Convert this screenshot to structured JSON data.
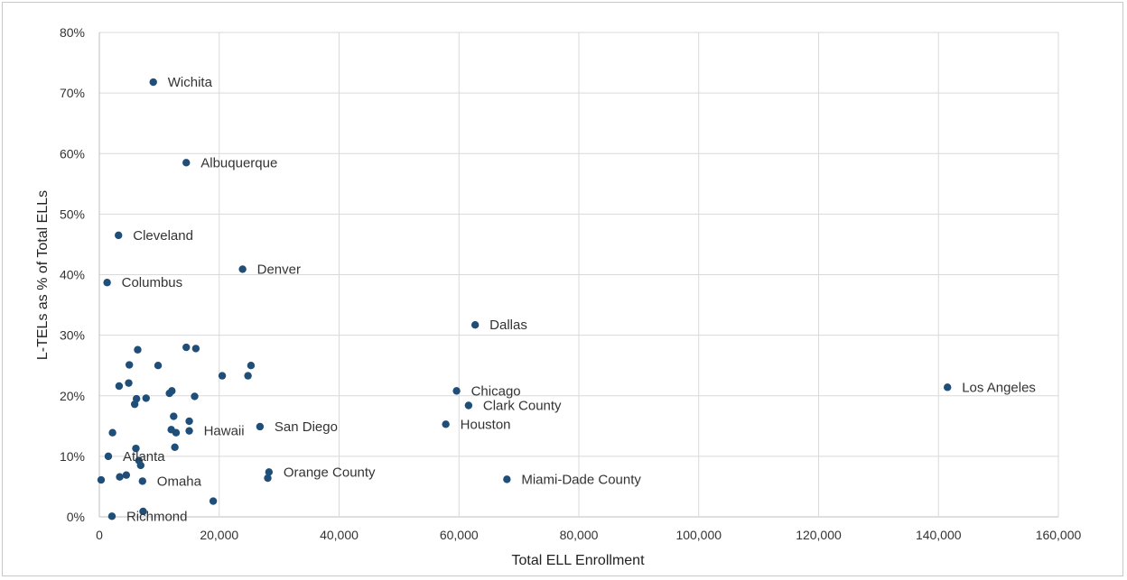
{
  "chart_data": {
    "type": "scatter",
    "title": "",
    "xlabel": "Total ELL Enrollment",
    "ylabel": "L-TELs as % of Total ELLs",
    "xlim": [
      0,
      160000
    ],
    "ylim": [
      0,
      80
    ],
    "x_ticks": [
      0,
      20000,
      40000,
      60000,
      80000,
      100000,
      120000,
      140000,
      160000
    ],
    "x_tick_labels": [
      "0",
      "20,000",
      "40,000",
      "60,000",
      "80,000",
      "100,000",
      "120,000",
      "140,000",
      "160,000"
    ],
    "y_ticks": [
      0,
      10,
      20,
      30,
      40,
      50,
      60,
      70,
      80
    ],
    "y_tick_labels": [
      "0%",
      "10%",
      "20%",
      "30%",
      "40%",
      "50%",
      "60%",
      "70%",
      "80%"
    ],
    "grid": true,
    "legend": "none",
    "marker_color": "#1f4e79",
    "points": [
      {
        "x": 9000,
        "y": 71.8,
        "label": "Wichita"
      },
      {
        "x": 14500,
        "y": 58.5,
        "label": "Albuquerque"
      },
      {
        "x": 3200,
        "y": 46.5,
        "label": "Cleveland"
      },
      {
        "x": 23900,
        "y": 40.9,
        "label": "Denver"
      },
      {
        "x": 1300,
        "y": 38.7,
        "label": "Columbus"
      },
      {
        "x": 62700,
        "y": 31.7,
        "label": "Dallas"
      },
      {
        "x": 141500,
        "y": 21.4,
        "label": "Los Angeles"
      },
      {
        "x": 59600,
        "y": 20.8,
        "label": "Chicago"
      },
      {
        "x": 61600,
        "y": 18.4,
        "label": "Clark County"
      },
      {
        "x": 57800,
        "y": 15.3,
        "label": "Houston"
      },
      {
        "x": 26800,
        "y": 14.9,
        "label": "San Diego"
      },
      {
        "x": 15000,
        "y": 14.2,
        "label": "Hawaii"
      },
      {
        "x": 1500,
        "y": 10.0,
        "label": "Atlanta"
      },
      {
        "x": 28300,
        "y": 7.4,
        "label": "Orange County"
      },
      {
        "x": 68000,
        "y": 6.2,
        "label": "Miami-Dade County"
      },
      {
        "x": 7200,
        "y": 5.9,
        "label": "Omaha"
      },
      {
        "x": 2100,
        "y": 0.1,
        "label": "Richmond"
      },
      {
        "x": 6400,
        "y": 27.6,
        "label": ""
      },
      {
        "x": 14500,
        "y": 28.0,
        "label": ""
      },
      {
        "x": 16100,
        "y": 27.8,
        "label": ""
      },
      {
        "x": 5000,
        "y": 25.1,
        "label": ""
      },
      {
        "x": 9800,
        "y": 25.0,
        "label": ""
      },
      {
        "x": 25300,
        "y": 25.0,
        "label": ""
      },
      {
        "x": 20500,
        "y": 23.3,
        "label": ""
      },
      {
        "x": 24800,
        "y": 23.3,
        "label": ""
      },
      {
        "x": 4900,
        "y": 22.1,
        "label": ""
      },
      {
        "x": 3300,
        "y": 21.6,
        "label": ""
      },
      {
        "x": 12100,
        "y": 20.8,
        "label": ""
      },
      {
        "x": 11700,
        "y": 20.4,
        "label": ""
      },
      {
        "x": 15900,
        "y": 19.9,
        "label": ""
      },
      {
        "x": 6200,
        "y": 19.5,
        "label": ""
      },
      {
        "x": 7800,
        "y": 19.6,
        "label": ""
      },
      {
        "x": 5900,
        "y": 18.6,
        "label": ""
      },
      {
        "x": 12400,
        "y": 16.6,
        "label": ""
      },
      {
        "x": 15000,
        "y": 15.8,
        "label": ""
      },
      {
        "x": 12000,
        "y": 14.4,
        "label": ""
      },
      {
        "x": 12800,
        "y": 13.9,
        "label": ""
      },
      {
        "x": 2200,
        "y": 13.9,
        "label": ""
      },
      {
        "x": 12600,
        "y": 11.5,
        "label": ""
      },
      {
        "x": 6100,
        "y": 11.3,
        "label": ""
      },
      {
        "x": 6600,
        "y": 9.3,
        "label": ""
      },
      {
        "x": 6900,
        "y": 8.5,
        "label": ""
      },
      {
        "x": 4500,
        "y": 6.9,
        "label": ""
      },
      {
        "x": 3400,
        "y": 6.6,
        "label": ""
      },
      {
        "x": 300,
        "y": 6.1,
        "label": ""
      },
      {
        "x": 28100,
        "y": 6.4,
        "label": ""
      },
      {
        "x": 19000,
        "y": 2.6,
        "label": ""
      },
      {
        "x": 7300,
        "y": 0.9,
        "label": ""
      }
    ]
  }
}
